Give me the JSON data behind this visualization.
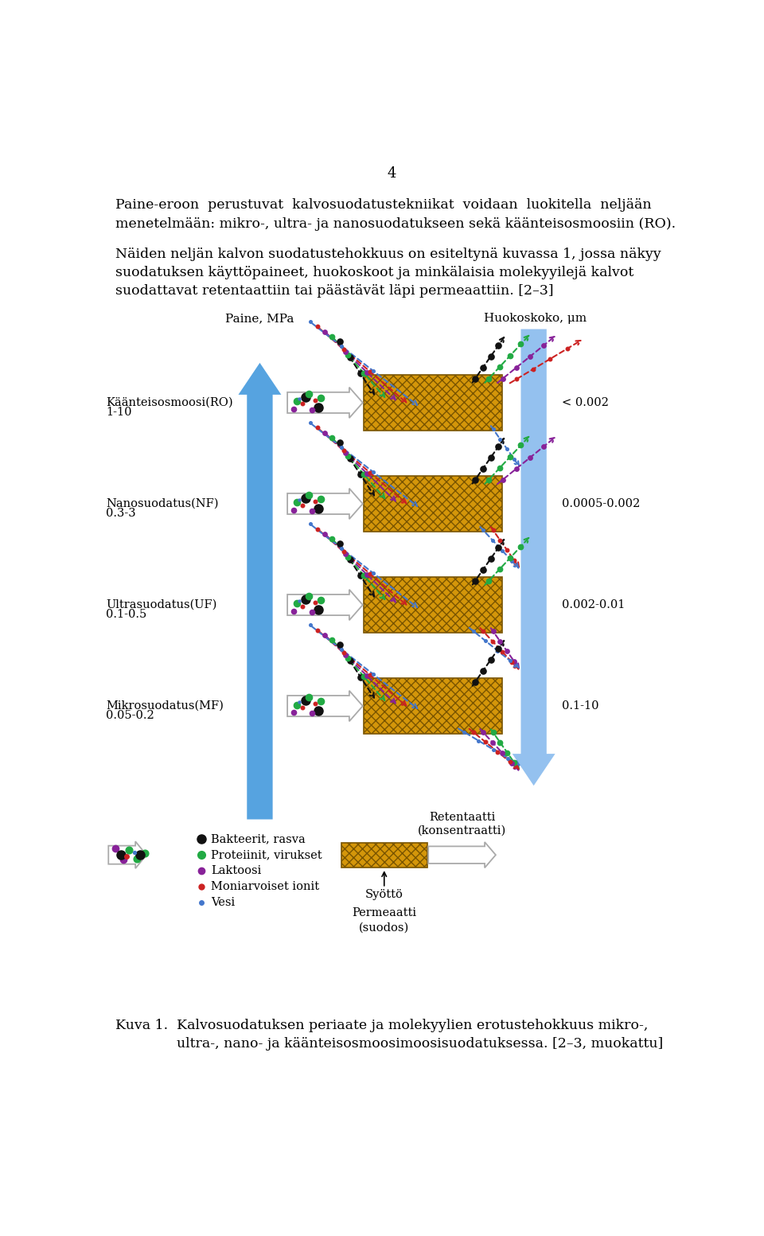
{
  "page_number": "4",
  "para1_line1": "Paine-eroon  perustuvat  kalvosuodatustekniikat  voidaan  luokitella  neljään",
  "para1_line2": "menetelmään: mikro-, ultra- ja nanosuodatukseen sekä käänteisosmoosiin (RO).",
  "para2_line1": "Näiden neljän kalvon suodatustehokkuus on esiteltynä kuvassa 1, jossa näkyy",
  "para2_line2": "suodatuksen käyttöpaineet, huokoskoot ja minkälaisia molekyyilejä kalvot",
  "para2_line3": "suodattavat retentaattiin tai päästävät läpi permeaattiin. [2–3]",
  "pressure_label": "Paine, MPa",
  "pore_label": "Huokoskoko, μm",
  "rows": [
    {
      "label": "Käänteisosmoosi(RO)",
      "pressure": "1-10",
      "size": "< 0.002",
      "pass_count": 1
    },
    {
      "label": "Nanosuodatus(NF)",
      "pressure": "0.3-3",
      "size": "0.0005-0.002",
      "pass_count": 2
    },
    {
      "label": "Ultrasuodatus(UF)",
      "pressure": "0.1-0.5",
      "size": "0.002-0.01",
      "pass_count": 3
    },
    {
      "label": "Mikrosuodatus(MF)",
      "pressure": "0.05-0.2",
      "size": "0.1-10",
      "pass_count": 4
    }
  ],
  "legend_items": [
    {
      "label": "Bakteerit, rasva",
      "color": "#111111",
      "size": 8
    },
    {
      "label": "Proteiinit, virukset",
      "color": "#22aa44",
      "size": 7
    },
    {
      "label": "Laktoosi",
      "color": "#882299",
      "size": 6
    },
    {
      "label": "Moniarvoiset ionit",
      "color": "#cc2222",
      "size": 5
    },
    {
      "label": "Vesi",
      "color": "#4477cc",
      "size": 4
    }
  ],
  "mol_colors": [
    "#111111",
    "#22aa44",
    "#882299",
    "#cc2222",
    "#4477cc"
  ],
  "mol_sizes": [
    8,
    7,
    6,
    5,
    4
  ],
  "feed_label": "Syöttö",
  "retentate_label": "Retentaatti\n(konsentraatti)",
  "permeate_label": "Permeaatti\n(suodos)",
  "bg_color": "#ffffff",
  "membrane_color": "#d4960a",
  "arrow_up_color": "#4499dd",
  "arrow_dn_color": "#88bbee",
  "caption_label": "Kuva 1.",
  "caption_text1": "Kalvosuodatuksen periaate ja molekyylien erotustehokkuus mikro-,",
  "caption_text2": "ultra-, nano- ja käänteisosmoosimoosisuodatuksessa. [2–3, muokattu]"
}
